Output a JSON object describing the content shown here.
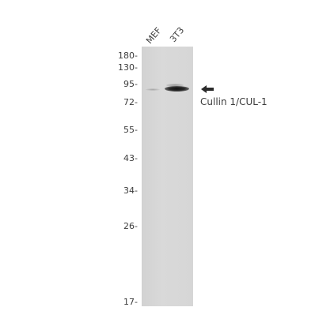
{
  "lanes": [
    {
      "label": "MEF"
    },
    {
      "label": "3T3"
    }
  ],
  "markers": [
    {
      "label": "180-"
    },
    {
      "label": "130-"
    },
    {
      "label": "95-"
    },
    {
      "label": "72-"
    },
    {
      "label": "55-"
    },
    {
      "label": "43-"
    },
    {
      "label": "34-"
    },
    {
      "label": "26-"
    },
    {
      "label": "17-"
    }
  ],
  "target": {
    "label": "Cullin 1/CUL-1",
    "arrow_icon": "left-arrow-icon"
  }
}
